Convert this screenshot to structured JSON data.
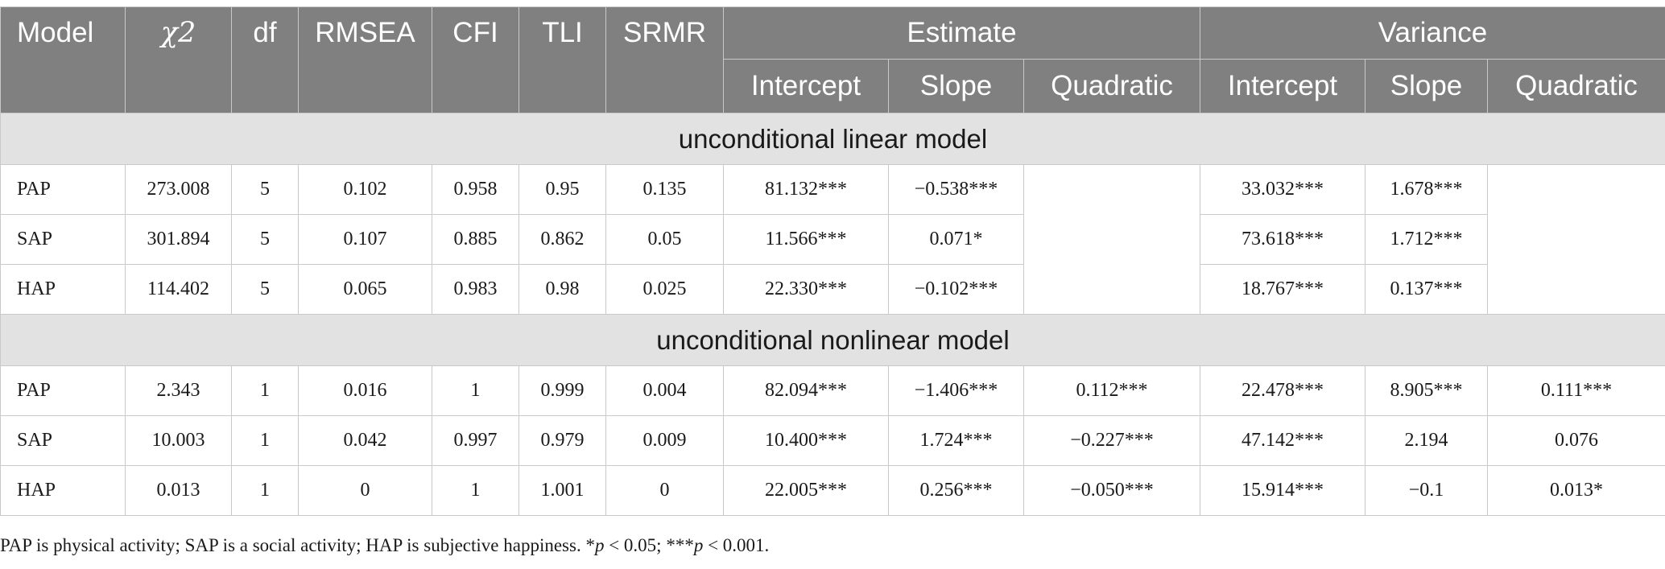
{
  "table": {
    "header_row1": [
      "Model",
      "χ2",
      "df",
      "RMSEA",
      "CFI",
      "TLI",
      "SRMR"
    ],
    "group_estimate": "Estimate",
    "group_variance": "Variance",
    "sub_estimate": [
      "Intercept",
      "Slope",
      "Quadratic"
    ],
    "sub_variance": [
      "Intercept",
      "Slope",
      "Quadratic"
    ],
    "sections": [
      {
        "title": "unconditional linear model",
        "rows": [
          [
            "PAP",
            "273.008",
            "5",
            "0.102",
            "0.958",
            "0.95",
            "0.135",
            "81.132***",
            "−0.538***",
            "",
            "33.032***",
            "1.678***",
            ""
          ],
          [
            "SAP",
            "301.894",
            "5",
            "0.107",
            "0.885",
            "0.862",
            "0.05",
            "11.566***",
            "0.071*",
            "",
            "73.618***",
            "1.712***",
            ""
          ],
          [
            "HAP",
            "114.402",
            "5",
            "0.065",
            "0.983",
            "0.98",
            "0.025",
            "22.330***",
            "−0.102***",
            "",
            "18.767***",
            "0.137***",
            ""
          ]
        ]
      },
      {
        "title": "unconditional nonlinear model",
        "rows": [
          [
            "PAP",
            "2.343",
            "1",
            "0.016",
            "1",
            "0.999",
            "0.004",
            "82.094***",
            "−1.406***",
            "0.112***",
            "22.478***",
            "8.905***",
            "0.111***"
          ],
          [
            "SAP",
            "10.003",
            "1",
            "0.042",
            "0.997",
            "0.979",
            "0.009",
            "10.400***",
            "1.724***",
            "−0.227***",
            "47.142***",
            "2.194",
            "0.076"
          ],
          [
            "HAP",
            "0.013",
            "1",
            "0",
            "1",
            "1.001",
            "0",
            "22.005***",
            "0.256***",
            "−0.050***",
            "15.914***",
            "−0.1",
            "0.013*"
          ]
        ]
      }
    ]
  },
  "note": {
    "part1": "PAP is physical activity; SAP is a social activity; HAP is subjective happiness. *",
    "p1": "p",
    "part2": " < 0.05; ***",
    "p2": "p",
    "part3": " < 0.001."
  }
}
